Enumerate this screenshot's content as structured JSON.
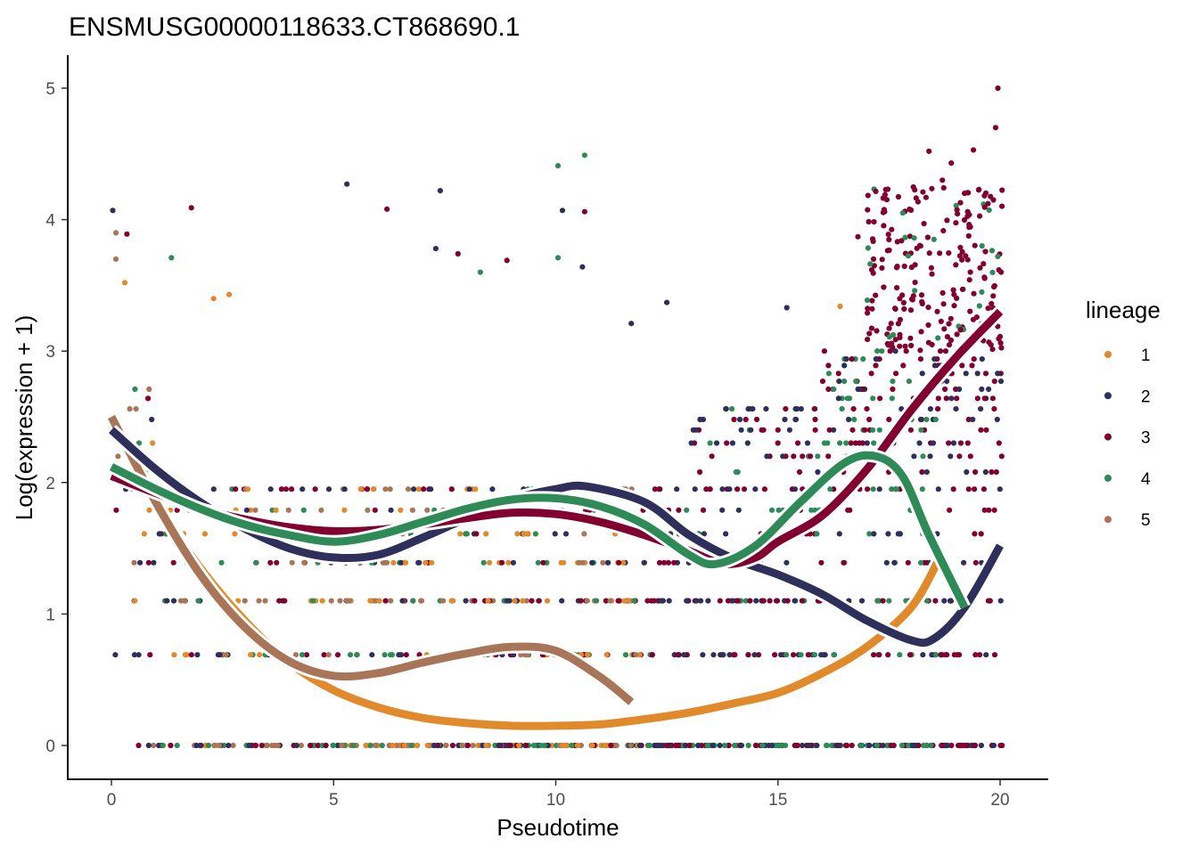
{
  "chart_data": {
    "type": "scatter",
    "title": "ENSMUSG00000118633.CT868690.1",
    "xlabel": "Pseudotime",
    "ylabel": "Log(expression + 1)",
    "xlim": [
      -1,
      21
    ],
    "ylim": [
      -0.25,
      5.25
    ],
    "x_ticks": [
      "0",
      "5",
      "10",
      "15",
      "20"
    ],
    "y_ticks": [
      "0",
      "1",
      "2",
      "3",
      "4",
      "5"
    ],
    "grid": false,
    "legend": {
      "title": "lineage",
      "position": "right"
    },
    "series": [
      {
        "name": "1",
        "color": "#e08a2c",
        "curve": {
          "x": [
            0,
            1,
            2,
            3,
            4,
            5,
            6,
            7,
            8,
            9,
            10,
            11,
            12,
            13,
            14,
            15,
            16,
            17,
            18,
            18.6
          ],
          "y": [
            2.45,
            1.85,
            1.35,
            0.95,
            0.63,
            0.42,
            0.29,
            0.21,
            0.17,
            0.15,
            0.15,
            0.16,
            0.2,
            0.25,
            0.32,
            0.4,
            0.55,
            0.75,
            1.05,
            1.4
          ]
        }
      },
      {
        "name": "2",
        "color": "#2e2f5b",
        "curve": {
          "x": [
            0,
            1,
            2,
            3,
            4,
            5,
            6,
            7,
            8,
            9,
            10,
            10.7,
            12,
            13,
            14,
            15,
            16,
            17,
            18,
            18.5,
            19.2,
            20
          ],
          "y": [
            2.4,
            2.1,
            1.85,
            1.65,
            1.5,
            1.43,
            1.45,
            1.58,
            1.73,
            1.87,
            1.95,
            1.97,
            1.85,
            1.6,
            1.42,
            1.3,
            1.15,
            0.95,
            0.8,
            0.81,
            1.05,
            1.52
          ]
        }
      },
      {
        "name": "3",
        "color": "#82002f",
        "curve": {
          "x": [
            0,
            1,
            2,
            3,
            4,
            5,
            6,
            7,
            8,
            9,
            10,
            11,
            12,
            13,
            13.8,
            14.5,
            15,
            16,
            17,
            18,
            19,
            20
          ],
          "y": [
            2.05,
            1.92,
            1.8,
            1.72,
            1.66,
            1.63,
            1.64,
            1.68,
            1.73,
            1.77,
            1.76,
            1.7,
            1.6,
            1.48,
            1.38,
            1.43,
            1.55,
            1.75,
            2.1,
            2.55,
            2.95,
            3.3
          ]
        }
      },
      {
        "name": "4",
        "color": "#2e8b57",
        "curve": {
          "x": [
            0,
            1,
            2,
            3,
            4,
            5,
            6,
            7,
            8,
            9,
            10,
            11,
            12,
            13,
            13.6,
            14.5,
            15.5,
            16.5,
            17.2,
            17.8,
            18.4,
            19.2
          ],
          "y": [
            2.12,
            1.95,
            1.8,
            1.68,
            1.6,
            1.55,
            1.6,
            1.7,
            1.8,
            1.87,
            1.88,
            1.82,
            1.68,
            1.45,
            1.38,
            1.52,
            1.85,
            2.15,
            2.2,
            2.05,
            1.6,
            1.05
          ]
        }
      },
      {
        "name": "5",
        "color": "#a87558",
        "curve": {
          "x": [
            0,
            1,
            2,
            3,
            4,
            5,
            6,
            7,
            8,
            9,
            10,
            11,
            11.7
          ],
          "y": [
            2.5,
            1.85,
            1.3,
            0.9,
            0.64,
            0.53,
            0.55,
            0.63,
            0.7,
            0.75,
            0.72,
            0.52,
            0.33
          ]
        }
      }
    ],
    "scatter_levels": [
      0,
      0.69,
      1.1,
      1.39,
      1.61,
      1.79,
      1.95,
      2.08,
      2.2,
      2.3,
      2.4,
      2.48,
      2.56,
      2.64,
      2.71,
      2.77,
      2.83,
      2.89,
      2.94,
      3.0
    ],
    "scatter_outliers": [
      {
        "x": 0.03,
        "y": 4.07,
        "s": 1
      },
      {
        "x": 0.1,
        "y": 3.9,
        "s": 4
      },
      {
        "x": 0.35,
        "y": 3.89,
        "s": 2
      },
      {
        "x": 0.1,
        "y": 3.7,
        "s": 4
      },
      {
        "x": 0.3,
        "y": 3.52,
        "s": 0
      },
      {
        "x": 1.8,
        "y": 4.09,
        "s": 2
      },
      {
        "x": 1.35,
        "y": 3.71,
        "s": 3
      },
      {
        "x": 2.3,
        "y": 3.4,
        "s": 0
      },
      {
        "x": 2.65,
        "y": 3.43,
        "s": 0
      },
      {
        "x": 5.3,
        "y": 4.27,
        "s": 1
      },
      {
        "x": 6.2,
        "y": 4.08,
        "s": 2
      },
      {
        "x": 7.4,
        "y": 4.22,
        "s": 1
      },
      {
        "x": 7.3,
        "y": 3.78,
        "s": 1
      },
      {
        "x": 7.8,
        "y": 3.74,
        "s": 2
      },
      {
        "x": 8.3,
        "y": 3.6,
        "s": 3
      },
      {
        "x": 8.9,
        "y": 3.69,
        "s": 2
      },
      {
        "x": 10.05,
        "y": 4.41,
        "s": 3
      },
      {
        "x": 10.65,
        "y": 4.49,
        "s": 3
      },
      {
        "x": 10.15,
        "y": 4.07,
        "s": 1
      },
      {
        "x": 10.65,
        "y": 4.06,
        "s": 2
      },
      {
        "x": 10.05,
        "y": 3.71,
        "s": 3
      },
      {
        "x": 10.6,
        "y": 3.64,
        "s": 1
      },
      {
        "x": 11.7,
        "y": 3.21,
        "s": 1
      },
      {
        "x": 12.5,
        "y": 3.37,
        "s": 1
      },
      {
        "x": 15.2,
        "y": 3.33,
        "s": 1
      },
      {
        "x": 16.4,
        "y": 3.34,
        "s": 0
      },
      {
        "x": 16.8,
        "y": 3.87,
        "s": 2
      },
      {
        "x": 17.4,
        "y": 4.06,
        "s": 2
      },
      {
        "x": 18.4,
        "y": 4.52,
        "s": 2
      },
      {
        "x": 18.9,
        "y": 4.43,
        "s": 2
      },
      {
        "x": 19.4,
        "y": 4.53,
        "s": 2
      },
      {
        "x": 19.9,
        "y": 4.7,
        "s": 2
      },
      {
        "x": 19.95,
        "y": 5.0,
        "s": 2
      },
      {
        "x": 19.85,
        "y": 4.15,
        "s": 2
      },
      {
        "x": 18.7,
        "y": 4.3,
        "s": 2
      },
      {
        "x": 19.2,
        "y": 4.2,
        "s": 2
      }
    ]
  }
}
